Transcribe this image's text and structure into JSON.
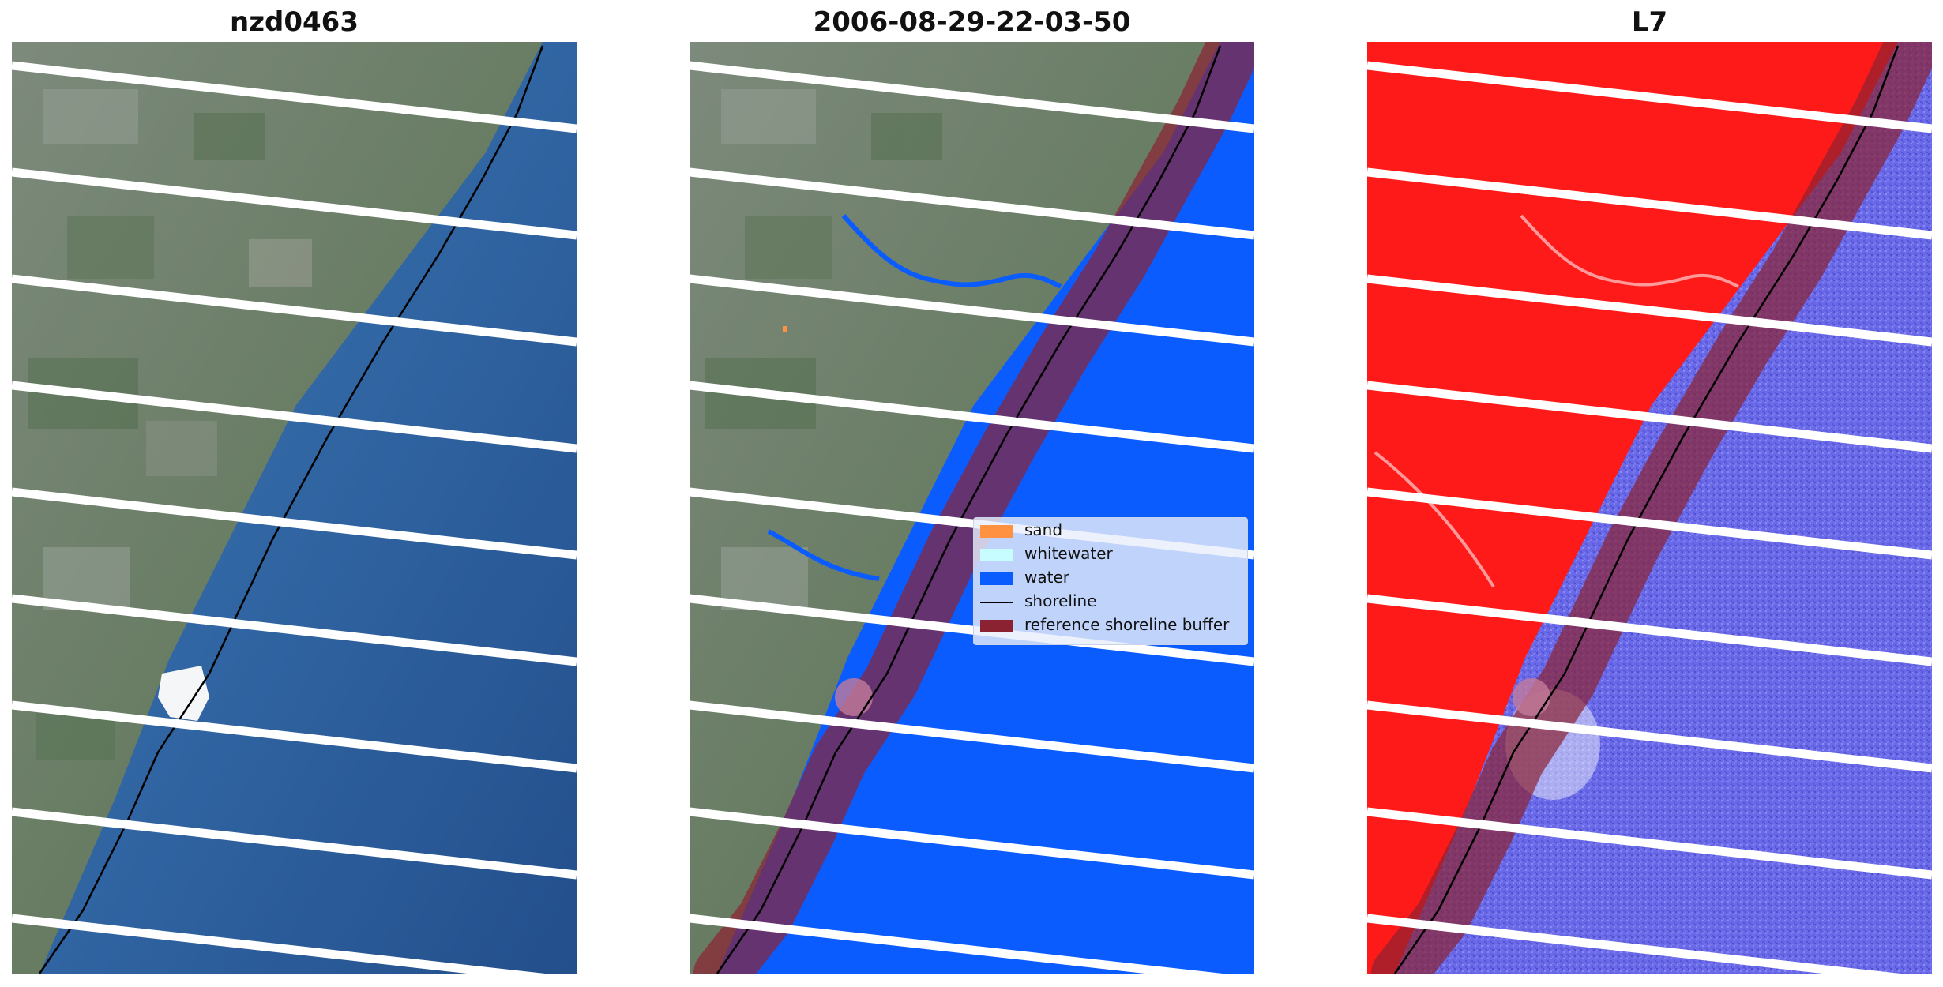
{
  "panels": [
    {
      "title": "nzd0463"
    },
    {
      "title": "2006-08-29-22-03-50"
    },
    {
      "title": "L7"
    }
  ],
  "legend": {
    "items": [
      {
        "label": "sand",
        "color": "#ff9140"
      },
      {
        "label": "whitewater",
        "color": "#c8fdff"
      },
      {
        "label": "water",
        "color": "#0b5cff"
      },
      {
        "label": "shoreline",
        "color": "#000000"
      },
      {
        "label": "reference shoreline buffer",
        "color": "#8b2232"
      }
    ]
  },
  "colors": {
    "land_rgb": "#6f7f6e",
    "sea_rgb": "#2f66a6",
    "water_class": "#0b5cff",
    "buffer": "#8b2232",
    "land_index": "#ff1a1a",
    "water_index": "#6a6ae8",
    "scan_gap": "#ffffff"
  }
}
